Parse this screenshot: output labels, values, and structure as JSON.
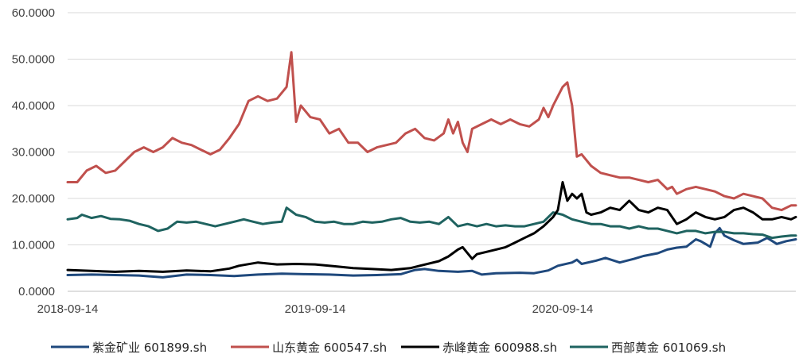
{
  "chart_data": {
    "type": "line",
    "title": "",
    "xlabel": "",
    "ylabel": "",
    "ylim": [
      0,
      60
    ],
    "y_ticks": [
      0,
      10,
      20,
      30,
      40,
      50,
      60
    ],
    "y_tick_labels": [
      "0.0000",
      "10.0000",
      "20.0000",
      "30.0000",
      "40.0000",
      "50.0000",
      "60.0000"
    ],
    "x_ticks": [
      {
        "t": 0,
        "label": "2018-09-14"
      },
      {
        "t": 52,
        "label": "2019-09-14"
      },
      {
        "t": 104,
        "label": "2020-09-14"
      }
    ],
    "x_range": [
      0,
      153
    ],
    "x_unit": "weeks",
    "grid": true,
    "legend_position": "bottom",
    "series": [
      {
        "name": "紫金矿业 601899.sh",
        "color": "#1f497d",
        "points": [
          [
            0,
            3.5
          ],
          [
            5,
            3.6
          ],
          [
            10,
            3.5
          ],
          [
            15,
            3.4
          ],
          [
            20,
            3.0
          ],
          [
            25,
            3.6
          ],
          [
            30,
            3.5
          ],
          [
            35,
            3.3
          ],
          [
            40,
            3.6
          ],
          [
            45,
            3.8
          ],
          [
            50,
            3.7
          ],
          [
            55,
            3.6
          ],
          [
            60,
            3.4
          ],
          [
            65,
            3.5
          ],
          [
            70,
            3.7
          ],
          [
            73,
            4.6
          ],
          [
            75,
            4.8
          ],
          [
            78,
            4.4
          ],
          [
            82,
            4.2
          ],
          [
            85,
            4.4
          ],
          [
            87,
            3.6
          ],
          [
            90,
            3.9
          ],
          [
            95,
            4.0
          ],
          [
            98,
            3.9
          ],
          [
            101,
            4.5
          ],
          [
            103,
            5.5
          ],
          [
            106,
            6.2
          ],
          [
            107,
            6.8
          ],
          [
            108,
            5.9
          ],
          [
            111,
            6.6
          ],
          [
            113,
            7.2
          ],
          [
            116,
            6.2
          ],
          [
            119,
            7.0
          ],
          [
            121,
            7.6
          ],
          [
            124,
            8.2
          ],
          [
            126,
            9.0
          ],
          [
            128,
            9.4
          ],
          [
            130,
            9.6
          ],
          [
            132,
            11.2
          ],
          [
            133,
            10.8
          ],
          [
            135,
            9.6
          ],
          [
            136,
            12.5
          ],
          [
            137,
            13.6
          ],
          [
            138,
            12.0
          ],
          [
            140,
            11.0
          ],
          [
            142,
            10.2
          ],
          [
            145,
            10.5
          ],
          [
            147,
            11.5
          ],
          [
            149,
            10.2
          ],
          [
            151,
            10.8
          ],
          [
            153,
            11.2
          ]
        ]
      },
      {
        "name": "山东黄金 600547.sh",
        "color": "#c0504d",
        "points": [
          [
            0,
            23.5
          ],
          [
            2,
            23.5
          ],
          [
            4,
            26.0
          ],
          [
            6,
            27.0
          ],
          [
            8,
            25.5
          ],
          [
            10,
            26.0
          ],
          [
            12,
            28.0
          ],
          [
            14,
            30.0
          ],
          [
            16,
            31.0
          ],
          [
            18,
            30.0
          ],
          [
            20,
            31.0
          ],
          [
            22,
            33.0
          ],
          [
            24,
            32.0
          ],
          [
            26,
            31.5
          ],
          [
            28,
            30.5
          ],
          [
            30,
            29.5
          ],
          [
            32,
            30.5
          ],
          [
            34,
            33.0
          ],
          [
            36,
            36.0
          ],
          [
            38,
            41.0
          ],
          [
            40,
            42.0
          ],
          [
            42,
            41.0
          ],
          [
            44,
            41.5
          ],
          [
            46,
            44.0
          ],
          [
            47,
            51.5
          ],
          [
            48,
            36.5
          ],
          [
            49,
            40.0
          ],
          [
            51,
            37.5
          ],
          [
            53,
            37.0
          ],
          [
            55,
            34.0
          ],
          [
            57,
            35.0
          ],
          [
            59,
            32.0
          ],
          [
            61,
            32.0
          ],
          [
            63,
            30.0
          ],
          [
            65,
            31.0
          ],
          [
            67,
            31.5
          ],
          [
            69,
            32.0
          ],
          [
            71,
            34.0
          ],
          [
            73,
            35.0
          ],
          [
            75,
            33.0
          ],
          [
            77,
            32.5
          ],
          [
            79,
            34.0
          ],
          [
            80,
            37.0
          ],
          [
            81,
            34.0
          ],
          [
            82,
            36.5
          ],
          [
            83,
            32.0
          ],
          [
            84,
            30.0
          ],
          [
            85,
            35.0
          ],
          [
            87,
            36.0
          ],
          [
            89,
            37.0
          ],
          [
            91,
            36.0
          ],
          [
            93,
            37.0
          ],
          [
            95,
            36.0
          ],
          [
            97,
            35.5
          ],
          [
            99,
            37.0
          ],
          [
            100,
            39.5
          ],
          [
            101,
            37.5
          ],
          [
            102,
            40.0
          ],
          [
            104,
            44.0
          ],
          [
            105,
            45.0
          ],
          [
            106,
            40.0
          ],
          [
            107,
            29.0
          ],
          [
            108,
            29.5
          ],
          [
            110,
            27.0
          ],
          [
            112,
            25.5
          ],
          [
            114,
            25.0
          ],
          [
            116,
            24.5
          ],
          [
            118,
            24.5
          ],
          [
            120,
            24.0
          ],
          [
            122,
            23.5
          ],
          [
            124,
            24.0
          ],
          [
            126,
            22.0
          ],
          [
            127,
            22.5
          ],
          [
            128,
            21.0
          ],
          [
            130,
            22.0
          ],
          [
            132,
            22.5
          ],
          [
            134,
            22.0
          ],
          [
            136,
            21.5
          ],
          [
            138,
            20.5
          ],
          [
            140,
            20.0
          ],
          [
            142,
            21.0
          ],
          [
            144,
            20.5
          ],
          [
            146,
            20.0
          ],
          [
            148,
            18.0
          ],
          [
            150,
            17.5
          ],
          [
            152,
            18.5
          ],
          [
            153,
            18.5
          ]
        ]
      },
      {
        "name": "赤峰黄金 600988.sh",
        "color": "#000000",
        "points": [
          [
            0,
            4.6
          ],
          [
            5,
            4.4
          ],
          [
            10,
            4.2
          ],
          [
            15,
            4.4
          ],
          [
            20,
            4.2
          ],
          [
            25,
            4.5
          ],
          [
            30,
            4.3
          ],
          [
            34,
            4.9
          ],
          [
            36,
            5.5
          ],
          [
            40,
            6.2
          ],
          [
            44,
            5.8
          ],
          [
            48,
            5.9
          ],
          [
            52,
            5.8
          ],
          [
            56,
            5.4
          ],
          [
            60,
            5.0
          ],
          [
            64,
            4.8
          ],
          [
            68,
            4.6
          ],
          [
            72,
            5.0
          ],
          [
            74,
            5.5
          ],
          [
            78,
            6.5
          ],
          [
            80,
            7.5
          ],
          [
            82,
            9.0
          ],
          [
            83,
            9.5
          ],
          [
            85,
            7.0
          ],
          [
            86,
            8.0
          ],
          [
            88,
            8.5
          ],
          [
            90,
            9.0
          ],
          [
            92,
            9.5
          ],
          [
            94,
            10.5
          ],
          [
            96,
            11.5
          ],
          [
            98,
            12.5
          ],
          [
            100,
            14.0
          ],
          [
            102,
            16.0
          ],
          [
            103,
            17.5
          ],
          [
            104,
            23.5
          ],
          [
            105,
            19.5
          ],
          [
            106,
            21.0
          ],
          [
            107,
            20.0
          ],
          [
            108,
            21.0
          ],
          [
            109,
            17.0
          ],
          [
            110,
            16.5
          ],
          [
            112,
            17.0
          ],
          [
            114,
            18.0
          ],
          [
            116,
            17.5
          ],
          [
            118,
            19.5
          ],
          [
            120,
            17.5
          ],
          [
            122,
            17.0
          ],
          [
            124,
            18.0
          ],
          [
            126,
            17.5
          ],
          [
            128,
            14.5
          ],
          [
            130,
            15.5
          ],
          [
            132,
            17.0
          ],
          [
            134,
            16.0
          ],
          [
            136,
            15.5
          ],
          [
            138,
            16.0
          ],
          [
            140,
            17.5
          ],
          [
            142,
            18.0
          ],
          [
            144,
            17.0
          ],
          [
            146,
            15.5
          ],
          [
            148,
            15.5
          ],
          [
            150,
            16.0
          ],
          [
            152,
            15.5
          ],
          [
            153,
            16.0
          ]
        ]
      },
      {
        "name": "西部黄金 601069.sh",
        "color": "#1f6360",
        "points": [
          [
            0,
            15.5
          ],
          [
            2,
            15.8
          ],
          [
            3,
            16.5
          ],
          [
            5,
            15.8
          ],
          [
            7,
            16.2
          ],
          [
            9,
            15.6
          ],
          [
            11,
            15.5
          ],
          [
            13,
            15.2
          ],
          [
            15,
            14.5
          ],
          [
            17,
            14.0
          ],
          [
            19,
            13.0
          ],
          [
            21,
            13.5
          ],
          [
            23,
            15.0
          ],
          [
            25,
            14.8
          ],
          [
            27,
            15.0
          ],
          [
            29,
            14.5
          ],
          [
            31,
            14.0
          ],
          [
            33,
            14.5
          ],
          [
            35,
            15.0
          ],
          [
            37,
            15.5
          ],
          [
            39,
            15.0
          ],
          [
            41,
            14.5
          ],
          [
            43,
            14.8
          ],
          [
            45,
            15.0
          ],
          [
            46,
            18.0
          ],
          [
            48,
            16.5
          ],
          [
            50,
            16.0
          ],
          [
            52,
            15.0
          ],
          [
            54,
            14.8
          ],
          [
            56,
            15.0
          ],
          [
            58,
            14.5
          ],
          [
            60,
            14.5
          ],
          [
            62,
            15.0
          ],
          [
            64,
            14.8
          ],
          [
            66,
            15.0
          ],
          [
            68,
            15.5
          ],
          [
            70,
            15.8
          ],
          [
            72,
            15.0
          ],
          [
            74,
            14.8
          ],
          [
            76,
            15.0
          ],
          [
            78,
            14.5
          ],
          [
            80,
            16.0
          ],
          [
            82,
            14.0
          ],
          [
            84,
            14.5
          ],
          [
            86,
            14.0
          ],
          [
            88,
            14.5
          ],
          [
            90,
            14.0
          ],
          [
            92,
            14.2
          ],
          [
            94,
            14.0
          ],
          [
            96,
            14.0
          ],
          [
            98,
            14.5
          ],
          [
            100,
            15.0
          ],
          [
            102,
            17.0
          ],
          [
            104,
            16.5
          ],
          [
            106,
            15.5
          ],
          [
            108,
            15.0
          ],
          [
            110,
            14.5
          ],
          [
            112,
            14.5
          ],
          [
            114,
            14.0
          ],
          [
            116,
            14.0
          ],
          [
            118,
            13.5
          ],
          [
            120,
            14.0
          ],
          [
            122,
            13.5
          ],
          [
            124,
            13.5
          ],
          [
            126,
            13.0
          ],
          [
            128,
            12.5
          ],
          [
            130,
            13.0
          ],
          [
            132,
            13.0
          ],
          [
            134,
            12.5
          ],
          [
            136,
            12.8
          ],
          [
            138,
            12.8
          ],
          [
            140,
            12.5
          ],
          [
            142,
            12.5
          ],
          [
            144,
            12.3
          ],
          [
            146,
            12.2
          ],
          [
            148,
            11.5
          ],
          [
            150,
            11.8
          ],
          [
            152,
            12.0
          ],
          [
            153,
            12.0
          ]
        ]
      }
    ]
  }
}
